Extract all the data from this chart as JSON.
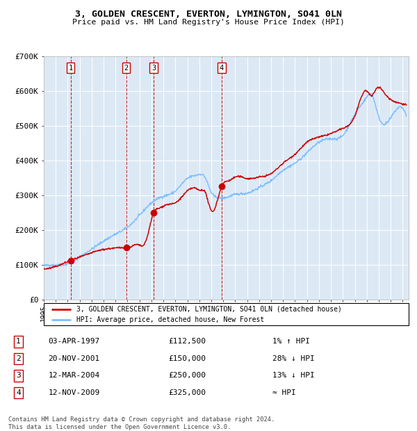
{
  "title": "3, GOLDEN CRESCENT, EVERTON, LYMINGTON, SO41 0LN",
  "subtitle": "Price paid vs. HM Land Registry's House Price Index (HPI)",
  "sale_dates_num": [
    1997.25,
    2001.89,
    2004.19,
    2009.87
  ],
  "sale_prices": [
    112500,
    150000,
    250000,
    325000
  ],
  "sale_labels": [
    "1",
    "2",
    "3",
    "4"
  ],
  "sale_annotations": [
    [
      "1",
      "03-APR-1997",
      "£112,500",
      "1% ↑ HPI"
    ],
    [
      "2",
      "20-NOV-2001",
      "£150,000",
      "28% ↓ HPI"
    ],
    [
      "3",
      "12-MAR-2004",
      "£250,000",
      "13% ↓ HPI"
    ],
    [
      "4",
      "12-NOV-2009",
      "£325,000",
      "≈ HPI"
    ]
  ],
  "legend_line1": "3, GOLDEN CRESCENT, EVERTON, LYMINGTON, SO41 0LN (detached house)",
  "legend_line2": "HPI: Average price, detached house, New Forest",
  "footer": "Contains HM Land Registry data © Crown copyright and database right 2024.\nThis data is licensed under the Open Government Licence v3.0.",
  "hpi_color": "#7fbfff",
  "price_color": "#cc0000",
  "dot_color": "#cc0000",
  "bg_color": "#dce9f5",
  "ylim": [
    0,
    700000
  ],
  "xlim_start": 1995.0,
  "xlim_end": 2025.5,
  "yticks": [
    0,
    100000,
    200000,
    300000,
    400000,
    500000,
    600000,
    700000
  ],
  "ytick_labels": [
    "£0",
    "£100K",
    "£200K",
    "£300K",
    "£400K",
    "£500K",
    "£600K",
    "£700K"
  ],
  "hpi_anchors_x": [
    1995.0,
    1996.0,
    1997.0,
    1998.0,
    1999.0,
    2000.0,
    2001.0,
    2002.0,
    2003.0,
    2004.0,
    2005.0,
    2006.0,
    2007.0,
    2007.8,
    2008.5,
    2009.0,
    2009.5,
    2010.0,
    2011.0,
    2012.0,
    2013.0,
    2014.0,
    2015.0,
    2016.0,
    2017.0,
    2018.0,
    2019.0,
    2020.0,
    2021.0,
    2022.0,
    2022.4,
    2023.0,
    2024.0,
    2025.3
  ],
  "hpi_anchors_y": [
    97000,
    99000,
    103000,
    122000,
    145000,
    168000,
    188000,
    208000,
    242000,
    278000,
    297000,
    312000,
    348000,
    358000,
    350000,
    308000,
    294000,
    292000,
    302000,
    306000,
    322000,
    342000,
    372000,
    392000,
    422000,
    452000,
    462000,
    472000,
    532000,
    582000,
    590000,
    525000,
    522000,
    528000
  ],
  "price_anchors_x": [
    1995.0,
    1996.0,
    1997.25,
    1998.5,
    1999.5,
    2001.0,
    2001.89,
    2002.3,
    2002.8,
    2003.5,
    2004.19,
    2004.6,
    2005.2,
    2006.0,
    2007.0,
    2007.8,
    2008.0,
    2008.5,
    2009.0,
    2009.87,
    2010.5,
    2011.0,
    2012.0,
    2013.0,
    2014.0,
    2015.0,
    2016.0,
    2017.0,
    2018.0,
    2019.0,
    2020.0,
    2021.0,
    2022.0,
    2022.4,
    2022.8,
    2023.5,
    2024.0,
    2025.3
  ],
  "price_anchors_y": [
    88000,
    95000,
    112500,
    128000,
    140000,
    148000,
    150000,
    152000,
    158000,
    165000,
    250000,
    262000,
    272000,
    278000,
    312000,
    318000,
    314000,
    308000,
    255000,
    325000,
    342000,
    352000,
    348000,
    352000,
    362000,
    392000,
    418000,
    452000,
    467000,
    477000,
    492000,
    528000,
    600000,
    585000,
    607000,
    592000,
    575000,
    560000
  ]
}
